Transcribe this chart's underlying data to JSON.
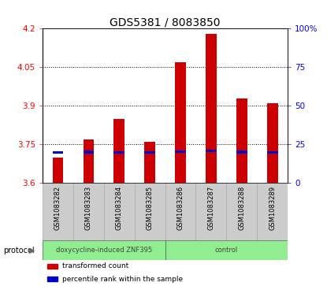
{
  "title": "GDS5381 / 8083850",
  "samples": [
    "GSM1083282",
    "GSM1083283",
    "GSM1083284",
    "GSM1083285",
    "GSM1083286",
    "GSM1083287",
    "GSM1083288",
    "GSM1083289"
  ],
  "transformed_count": [
    3.7,
    3.77,
    3.85,
    3.76,
    4.07,
    4.18,
    3.93,
    3.91
  ],
  "percentile_rank_values": [
    3.713,
    3.715,
    3.714,
    3.714,
    3.716,
    3.72,
    3.715,
    3.714
  ],
  "ymin": 3.6,
  "ymax": 4.2,
  "y_ticks": [
    3.6,
    3.75,
    3.9,
    4.05,
    4.2
  ],
  "y_tick_labels": [
    "3.6",
    "3.75",
    "3.9",
    "4.05",
    "4.2"
  ],
  "right_y_ticks": [
    0,
    25,
    50,
    75,
    100
  ],
  "right_y_tick_labels": [
    "0",
    "25",
    "50",
    "75",
    "100%"
  ],
  "groups": [
    {
      "label": "doxycycline-induced ZNF395",
      "indices": [
        0,
        1,
        2,
        3
      ],
      "color": "#90EE90"
    },
    {
      "label": "control",
      "indices": [
        4,
        5,
        6,
        7
      ],
      "color": "#90EE90"
    }
  ],
  "bar_color": "#cc0000",
  "percentile_color": "#0000cc",
  "bar_width": 0.35,
  "grid_color": "black",
  "bg_plot": "#ffffff",
  "bg_xticklabels": "#cccccc",
  "protocol_label": "protocol",
  "legend_items": [
    {
      "label": "transformed count",
      "color": "#cc0000"
    },
    {
      "label": "percentile rank within the sample",
      "color": "#0000cc"
    }
  ],
  "title_fontsize": 10,
  "tick_fontsize": 7.5,
  "sample_fontsize": 6.0
}
